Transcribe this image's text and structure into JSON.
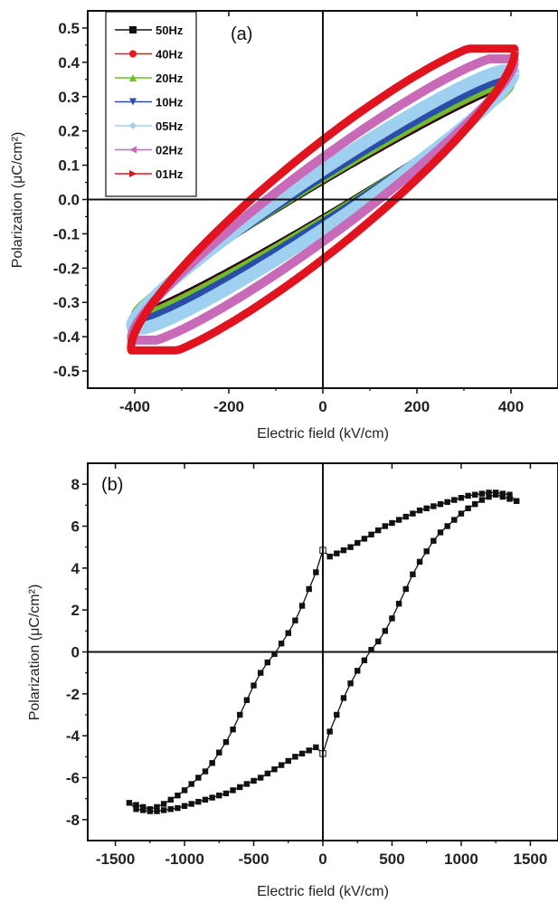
{
  "chart_data": [
    {
      "type": "line",
      "panel_label": "(a)",
      "xlabel": "Electric field (kV/cm)",
      "ylabel": "Polarization (μC/cm²)",
      "xlim": [
        -500,
        500
      ],
      "ylim": [
        -0.55,
        0.55
      ],
      "xticks": [
        -400,
        -200,
        0,
        200,
        400
      ],
      "xtick_labels": [
        "-400",
        "-200",
        "0",
        "200",
        "400"
      ],
      "yticks": [
        -0.5,
        -0.4,
        -0.3,
        -0.2,
        -0.1,
        0.0,
        0.1,
        0.2,
        0.3,
        0.4,
        0.5
      ],
      "ytick_labels": [
        "-0.5",
        "-0.4",
        "-0.3",
        "-0.2",
        "-0.1",
        "0.0",
        "0.1",
        "0.2",
        "0.3",
        "0.4",
        "0.5"
      ],
      "legend_position": "top-left",
      "grid": false,
      "series": [
        {
          "name": "50Hz",
          "color": "#111111",
          "marker": "square",
          "line_width": 3,
          "loop": {
            "emax": 400,
            "pmax": 0.33,
            "pr": 0.045,
            "psat": 0.32
          }
        },
        {
          "name": "40Hz",
          "color": "#e31a1c",
          "marker": "circle",
          "line_width": 3,
          "loop": {
            "emax": 400,
            "pmax": 0.335,
            "pr": 0.05,
            "psat": 0.33
          }
        },
        {
          "name": "20Hz",
          "color": "#6cbf2a",
          "marker": "triangle-up",
          "line_width": 6,
          "loop": {
            "emax": 402,
            "pmax": 0.34,
            "pr": 0.055,
            "psat": 0.335
          }
        },
        {
          "name": "10Hz",
          "color": "#2b4da8",
          "marker": "triangle-down",
          "line_width": 8,
          "loop": {
            "emax": 404,
            "pmax": 0.355,
            "pr": 0.065,
            "psat": 0.35
          }
        },
        {
          "name": "05Hz",
          "color": "#9fd0ef",
          "marker": "diamond",
          "line_width": 14,
          "loop": {
            "emax": 405,
            "pmax": 0.375,
            "pr": 0.085,
            "psat": 0.365
          }
        },
        {
          "name": "02Hz",
          "color": "#c96ab8",
          "marker": "triangle-left",
          "line_width": 10,
          "loop": {
            "emax": 407,
            "pmax": 0.41,
            "pr": 0.12,
            "psat": 0.4
          }
        },
        {
          "name": "01Hz",
          "color": "#e0131f",
          "marker": "triangle-right",
          "line_width": 9,
          "loop": {
            "emax": 408,
            "pmax": 0.44,
            "pr": 0.17,
            "psat": 0.43
          }
        }
      ]
    },
    {
      "type": "line",
      "panel_label": "(b)",
      "xlabel": "Electric field (kV/cm)",
      "ylabel": "Polarization (μC/cm²)",
      "xlim": [
        -1700,
        1700
      ],
      "ylim": [
        -9,
        9
      ],
      "xticks": [
        -1500,
        -1000,
        -500,
        0,
        500,
        1000,
        1500
      ],
      "xtick_labels": [
        "-1500",
        "-1000",
        "-500",
        "0",
        "500",
        "1000",
        "1500"
      ],
      "yticks": [
        -8,
        -6,
        -4,
        -2,
        0,
        2,
        4,
        6,
        8
      ],
      "ytick_labels": [
        "-8",
        "-6",
        "-4",
        "-2",
        "0",
        "2",
        "4",
        "6",
        "8"
      ],
      "grid": false,
      "series": [
        {
          "color": "#111111",
          "marker": "square",
          "x": [
            1400,
            1350,
            1300,
            1250,
            1200,
            1150,
            1100,
            1050,
            1000,
            950,
            900,
            850,
            800,
            750,
            700,
            650,
            600,
            550,
            500,
            450,
            400,
            350,
            300,
            250,
            200,
            150,
            100,
            50,
            0,
            -50,
            -100,
            -150,
            -200,
            -250,
            -300,
            -350,
            -400,
            -450,
            -500,
            -550,
            -600,
            -650,
            -700,
            -750,
            -800,
            -850,
            -900,
            -950,
            -1000,
            -1050,
            -1100,
            -1150,
            -1200,
            -1250,
            -1300,
            -1350,
            -1400,
            -1350,
            -1300,
            -1250,
            -1200,
            -1150,
            -1100,
            -1050,
            -1000,
            -950,
            -900,
            -850,
            -800,
            -750,
            -700,
            -650,
            -600,
            -550,
            -500,
            -450,
            -400,
            -350,
            -300,
            -250,
            -200,
            -150,
            -100,
            -50,
            0,
            50,
            100,
            150,
            200,
            250,
            300,
            350,
            400,
            450,
            500,
            550,
            600,
            650,
            700,
            750,
            800,
            850,
            900,
            950,
            1000,
            1050,
            1100,
            1150,
            1200,
            1250,
            1300,
            1350,
            1400
          ],
          "y": [
            7.2,
            7.5,
            7.55,
            7.6,
            7.6,
            7.55,
            7.5,
            7.45,
            7.35,
            7.25,
            7.15,
            7.05,
            6.95,
            6.85,
            6.75,
            6.6,
            6.45,
            6.3,
            6.15,
            6.0,
            5.8,
            5.6,
            5.4,
            5.2,
            5.0,
            4.85,
            4.7,
            4.55,
            4.85,
            3.8,
            3.0,
            2.2,
            1.5,
            0.9,
            0.4,
            -0.1,
            -0.5,
            -1.0,
            -1.6,
            -2.3,
            -3.0,
            -3.7,
            -4.3,
            -4.8,
            -5.3,
            -5.7,
            -6.0,
            -6.3,
            -6.6,
            -6.85,
            -7.05,
            -7.25,
            -7.4,
            -7.5,
            -7.4,
            -7.3,
            -7.2,
            -7.5,
            -7.55,
            -7.6,
            -7.6,
            -7.55,
            -7.5,
            -7.45,
            -7.35,
            -7.25,
            -7.15,
            -7.05,
            -6.95,
            -6.85,
            -6.75,
            -6.6,
            -6.45,
            -6.3,
            -6.15,
            -6.0,
            -5.8,
            -5.6,
            -5.4,
            -5.2,
            -5.0,
            -4.85,
            -4.7,
            -4.55,
            -4.85,
            -3.8,
            -3.0,
            -2.2,
            -1.5,
            -0.9,
            -0.4,
            0.1,
            0.5,
            1.0,
            1.6,
            2.3,
            3.0,
            3.7,
            4.3,
            4.8,
            5.3,
            5.7,
            6.0,
            6.3,
            6.6,
            6.85,
            7.05,
            7.25,
            7.4,
            7.5,
            7.4,
            7.3,
            7.2
          ]
        }
      ]
    }
  ]
}
